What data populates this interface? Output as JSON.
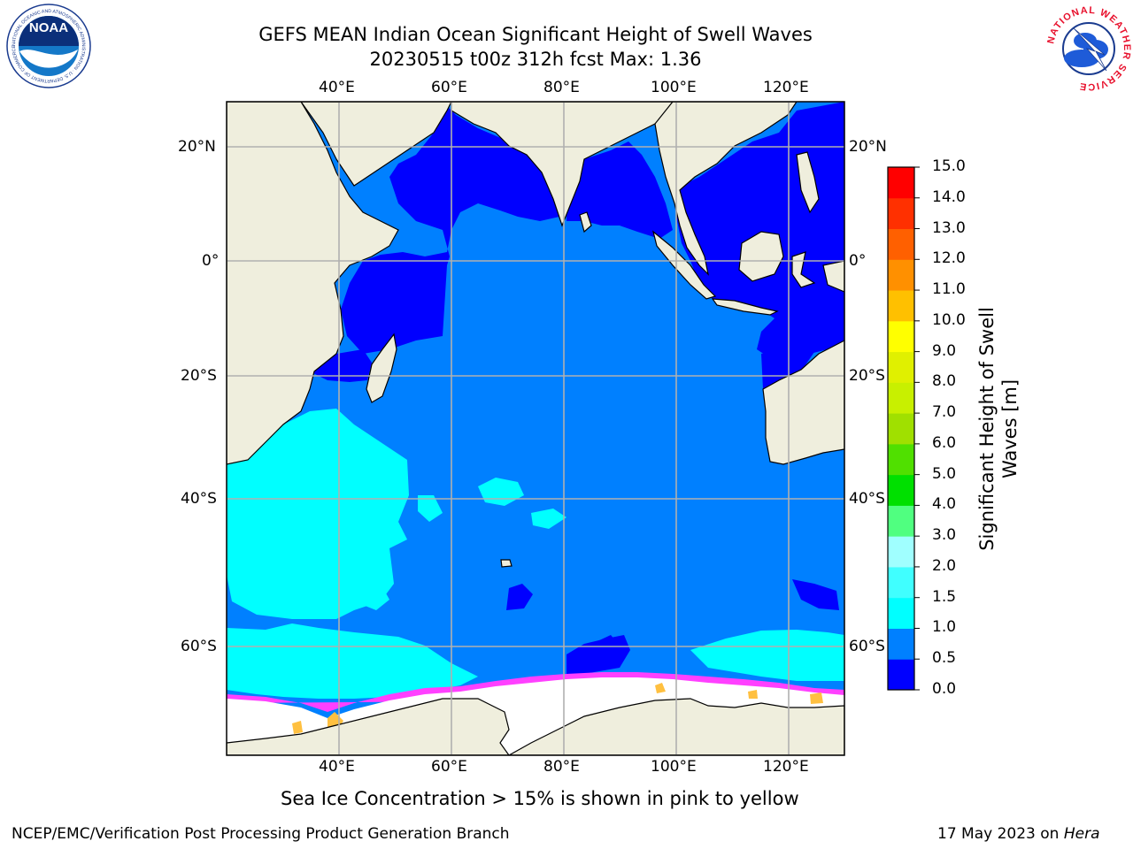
{
  "header": {
    "title_line1": "GEFS MEAN Indian Ocean Significant Height of Swell Waves",
    "title_line2": "20230515 t00z 312h fcst   Max: 1.36"
  },
  "logos": {
    "left": {
      "name": "noaa-logo",
      "text": "NOAA",
      "ring_text": "NATIONAL OCEANIC AND ATMOSPHERIC ADMINISTRATION · U.S. DEPARTMENT OF COMMERCE"
    },
    "right": {
      "name": "nws-logo",
      "ring_text": "NATIONAL WEATHER SERVICE"
    }
  },
  "map": {
    "lon_labels": [
      "40°E",
      "60°E",
      "80°E",
      "100°E",
      "120°E"
    ],
    "lat_labels": [
      "20°N",
      "0°",
      "20°S",
      "40°S",
      "60°S"
    ],
    "colors": {
      "land": "#efeedd",
      "deep_blue": "#0000ff",
      "mid_blue": "#0080ff",
      "cyan": "#00ffff",
      "ice": "#ffffff",
      "grid": "#b0b0b0"
    }
  },
  "colorbar": {
    "label_line1": "Significant Height of Swell",
    "label_line2": "Waves [m]",
    "ticks": [
      "0.0",
      "0.5",
      "1.0",
      "1.5",
      "2.0",
      "3.0",
      "4.0",
      "5.0",
      "6.0",
      "7.0",
      "8.0",
      "9.0",
      "10.0",
      "11.0",
      "12.0",
      "13.0",
      "14.0",
      "15.0"
    ],
    "bin_colors": [
      "#0000ff",
      "#0080ff",
      "#00ffff",
      "#40ffff",
      "#a0ffff",
      "#50ff80",
      "#00e000",
      "#50e000",
      "#a0e000",
      "#c8f000",
      "#e0f000",
      "#ffff00",
      "#ffc000",
      "#ff9000",
      "#ff6000",
      "#ff3000",
      "#ff0000"
    ]
  },
  "caption": "Sea Ice Concentration > 15% is shown in pink to yellow",
  "footer": {
    "left": "NCEP/EMC/Verification Post Processing Product Generation Branch",
    "right_date": "17 May 2023 on ",
    "right_host": "Hera"
  }
}
